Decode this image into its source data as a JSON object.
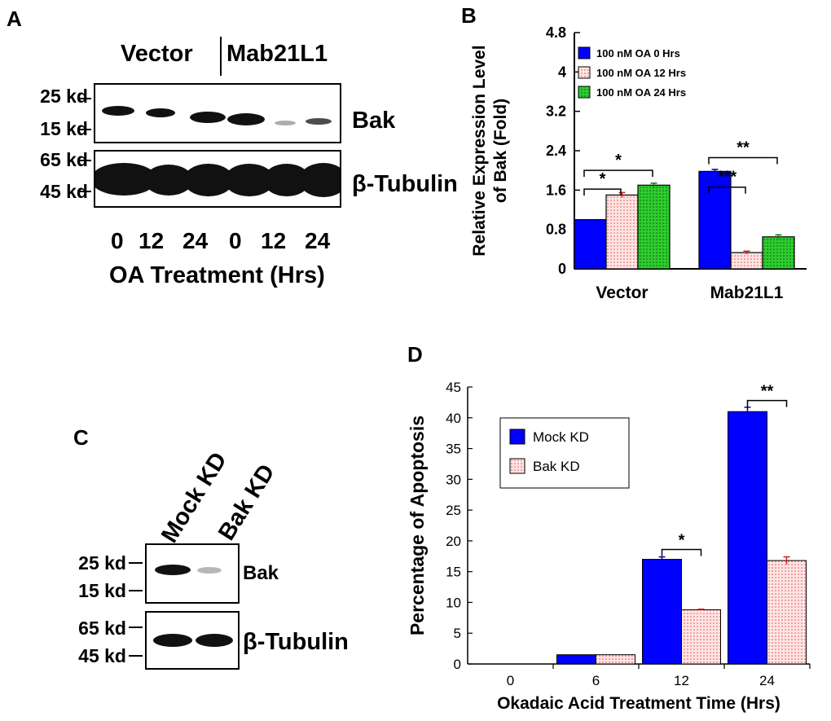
{
  "panels": {
    "a": "A",
    "b": "B",
    "c": "C",
    "d": "D"
  },
  "blot_a": {
    "header_left": "Vector",
    "header_right": "Mab21L1",
    "markers_top": [
      "25 kd",
      "15 kd"
    ],
    "markers_bottom": [
      "65 kd",
      "45 kd"
    ],
    "label_top": "Bak",
    "label_bottom": "β-Tubulin",
    "lanes": [
      "0",
      "12",
      "24",
      "0",
      "12",
      "24"
    ],
    "xlabel": "OA Treatment (Hrs)"
  },
  "blot_c": {
    "lanes": [
      "Mock KD",
      "Bak KD"
    ],
    "markers_top": [
      "25 kd",
      "15 kd"
    ],
    "markers_bottom": [
      "65 kd",
      "45 kd"
    ],
    "label_top": "Bak",
    "label_bottom": "β-Tubulin"
  },
  "chart_data": [
    {
      "type": "bar",
      "ylabel": "Relative Expression Level of Bak (Fold)",
      "ylabel_lines": [
        "Relative Expression Level",
        "of Bak (Fold)"
      ],
      "categories": [
        "Vector",
        "Mab21L1"
      ],
      "ylim": [
        0,
        4.8
      ],
      "yticks": [
        "0",
        "0.8",
        "1.6",
        "2.4",
        "3.2",
        "4",
        "4.8"
      ],
      "series": [
        {
          "name": "100 nM OA 0 Hrs",
          "values": [
            1.0,
            1.98
          ],
          "errors": [
            0.0,
            0.04
          ],
          "color": "#0000ff"
        },
        {
          "name": "100 nM OA 12 Hrs",
          "values": [
            1.5,
            0.33
          ],
          "errors": [
            0.05,
            0.03
          ],
          "color": "#ffd0d0"
        },
        {
          "name": "100 nM OA 24 Hrs",
          "values": [
            1.7,
            0.65
          ],
          "errors": [
            0.04,
            0.04
          ],
          "color": "#33cc33"
        }
      ],
      "annotations": [
        "*",
        "*",
        "***",
        "**"
      ],
      "legend": "top-left"
    },
    {
      "type": "bar",
      "ylabel": "Percentage of Apoptosis",
      "xlabel": "Okadaic Acid Treatment Time (Hrs)",
      "categories": [
        "0",
        "6",
        "12",
        "24"
      ],
      "ylim": [
        0,
        45
      ],
      "yticks": [
        "0",
        "5",
        "10",
        "15",
        "20",
        "25",
        "30",
        "35",
        "40",
        "45"
      ],
      "series": [
        {
          "name": "Mock KD",
          "values": [
            0,
            1.5,
            17.0,
            41.0
          ],
          "errors": [
            0,
            0,
            0.4,
            0.7
          ],
          "color": "#0000ff"
        },
        {
          "name": "Bak KD",
          "values": [
            0,
            1.5,
            8.8,
            16.8
          ],
          "errors": [
            0,
            0,
            0.1,
            0.6
          ],
          "color": "#ffd0d0"
        }
      ],
      "annotations": [
        "*",
        "**"
      ],
      "legend": "top-left"
    }
  ]
}
